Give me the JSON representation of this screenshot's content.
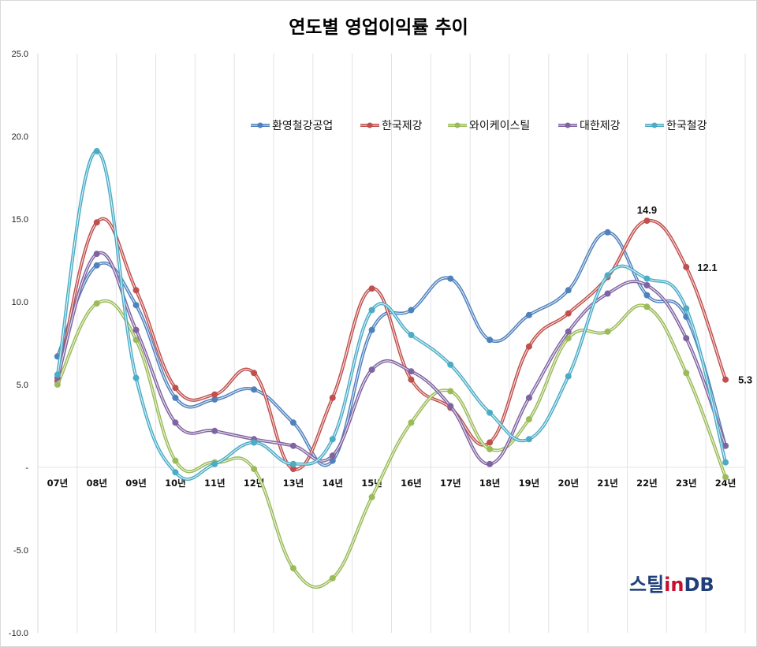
{
  "chart_data": {
    "type": "line",
    "title": "연도별 영업이익률 추이",
    "categories": [
      "07년",
      "08년",
      "09년",
      "10년",
      "11년",
      "12년",
      "13년",
      "14년",
      "15년",
      "16년",
      "17년",
      "18년",
      "19년",
      "20년",
      "21년",
      "22년",
      "23년",
      "24년"
    ],
    "ylim": [
      -10,
      25
    ],
    "yticks": [
      25,
      20,
      15,
      10,
      5,
      0,
      -5,
      -10
    ],
    "ytick_labels": [
      "25.0",
      "20.0",
      "15.0",
      "10.0",
      "5.0",
      "-",
      "-5.0",
      "-10.0"
    ],
    "grid": "vertical",
    "legend_position": "top-right",
    "series": [
      {
        "name": "환영철강공업",
        "color": "#4f81bd",
        "values": [
          6.7,
          12.2,
          9.8,
          4.2,
          4.1,
          4.7,
          2.7,
          0.4,
          8.3,
          9.5,
          11.4,
          7.7,
          9.2,
          10.7,
          14.2,
          10.4,
          9.1,
          1.3
        ]
      },
      {
        "name": "한국제강",
        "color": "#c0504d",
        "values": [
          5.2,
          14.8,
          10.7,
          4.8,
          4.4,
          5.7,
          -0.1,
          4.2,
          10.8,
          5.3,
          3.6,
          1.5,
          7.3,
          9.3,
          11.5,
          14.9,
          12.1,
          5.3
        ]
      },
      {
        "name": "와이케이스틸",
        "color": "#9bbb59",
        "values": [
          5.0,
          9.9,
          7.7,
          0.4,
          0.3,
          -0.1,
          -6.1,
          -6.7,
          -1.8,
          2.7,
          4.6,
          1.1,
          2.9,
          7.8,
          8.2,
          9.7,
          5.7,
          -0.6
        ]
      },
      {
        "name": "대한제강",
        "color": "#8064a2",
        "values": [
          5.4,
          12.9,
          8.3,
          2.7,
          2.2,
          1.7,
          1.3,
          0.7,
          5.9,
          5.8,
          3.7,
          0.2,
          4.2,
          8.2,
          10.5,
          11.0,
          7.8,
          1.3
        ]
      },
      {
        "name": "한국철강",
        "color": "#4bacc6",
        "values": [
          5.6,
          19.1,
          5.4,
          -0.3,
          0.2,
          1.5,
          0.2,
          1.7,
          9.5,
          8.0,
          6.2,
          3.3,
          1.7,
          5.5,
          11.6,
          11.4,
          9.6,
          0.3
        ]
      }
    ],
    "annotations": [
      {
        "series": "한국제강",
        "category": "22년",
        "text": "14.9"
      },
      {
        "series": "한국제강",
        "category": "23년",
        "text": "12.1"
      },
      {
        "series": "한국제강",
        "category": "24년",
        "text": "5.3"
      }
    ]
  },
  "logo": {
    "part1": "스틸",
    "part2": "in",
    "part3": "DB"
  }
}
